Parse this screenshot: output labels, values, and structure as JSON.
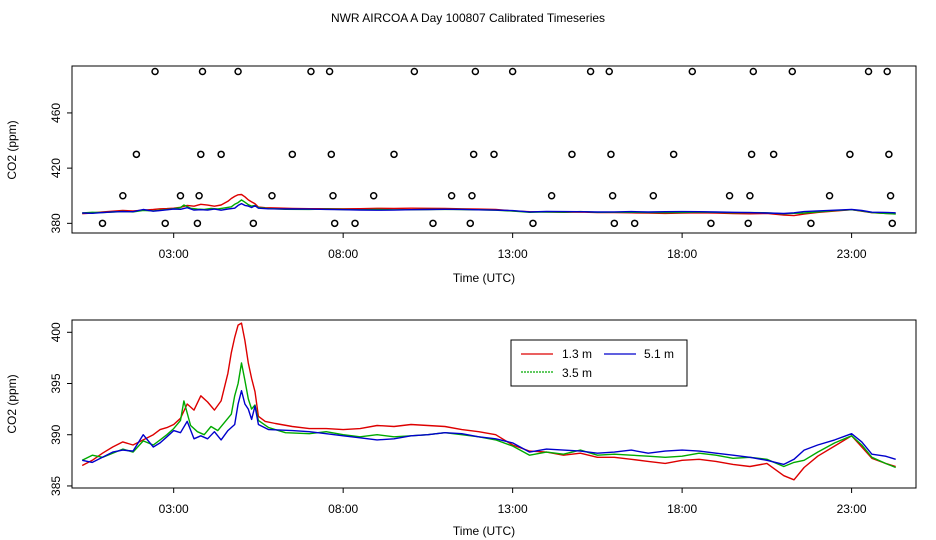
{
  "chart_data": {
    "title": "NWR AIRCOA A  Day 100807  Calibrated Timeseries",
    "panels": [
      {
        "type": "scatter+line",
        "xlabel": "Time (UTC)",
        "ylabel": "CO2 (ppm)",
        "xlim": [
          0,
          24.9
        ],
        "ylim": [
          373,
          494
        ],
        "xticks": [
          3,
          8,
          13,
          18,
          23
        ],
        "xtick_labels": [
          "03:00",
          "08:00",
          "13:00",
          "18:00",
          "23:00"
        ],
        "yticks": [
          380,
          420,
          460
        ],
        "ytick_labels": [
          "380",
          "420",
          "460"
        ],
        "circles": [
          {
            "x": 0.9,
            "y": 380
          },
          {
            "x": 1.5,
            "y": 400
          },
          {
            "x": 1.9,
            "y": 430
          },
          {
            "x": 2.45,
            "y": 490
          },
          {
            "x": 2.75,
            "y": 380
          },
          {
            "x": 3.2,
            "y": 400
          },
          {
            "x": 3.7,
            "y": 380
          },
          {
            "x": 3.75,
            "y": 400
          },
          {
            "x": 3.8,
            "y": 430
          },
          {
            "x": 3.85,
            "y": 490
          },
          {
            "x": 4.4,
            "y": 430
          },
          {
            "x": 4.9,
            "y": 490
          },
          {
            "x": 5.35,
            "y": 380
          },
          {
            "x": 5.9,
            "y": 400
          },
          {
            "x": 6.5,
            "y": 430
          },
          {
            "x": 7.05,
            "y": 490
          },
          {
            "x": 7.6,
            "y": 490
          },
          {
            "x": 7.65,
            "y": 430
          },
          {
            "x": 7.7,
            "y": 400
          },
          {
            "x": 7.75,
            "y": 380
          },
          {
            "x": 8.35,
            "y": 380
          },
          {
            "x": 8.9,
            "y": 400
          },
          {
            "x": 9.5,
            "y": 430
          },
          {
            "x": 10.1,
            "y": 490
          },
          {
            "x": 10.65,
            "y": 380
          },
          {
            "x": 11.2,
            "y": 400
          },
          {
            "x": 11.75,
            "y": 380
          },
          {
            "x": 11.8,
            "y": 400
          },
          {
            "x": 11.85,
            "y": 430
          },
          {
            "x": 11.9,
            "y": 490
          },
          {
            "x": 12.45,
            "y": 430
          },
          {
            "x": 13.0,
            "y": 490
          },
          {
            "x": 13.6,
            "y": 380
          },
          {
            "x": 14.15,
            "y": 400
          },
          {
            "x": 14.75,
            "y": 430
          },
          {
            "x": 15.3,
            "y": 490
          },
          {
            "x": 15.85,
            "y": 490
          },
          {
            "x": 15.9,
            "y": 430
          },
          {
            "x": 15.95,
            "y": 400
          },
          {
            "x": 16.0,
            "y": 380
          },
          {
            "x": 16.6,
            "y": 380
          },
          {
            "x": 17.15,
            "y": 400
          },
          {
            "x": 17.75,
            "y": 430
          },
          {
            "x": 18.3,
            "y": 490
          },
          {
            "x": 18.85,
            "y": 380
          },
          {
            "x": 19.4,
            "y": 400
          },
          {
            "x": 19.95,
            "y": 380
          },
          {
            "x": 20.0,
            "y": 400
          },
          {
            "x": 20.05,
            "y": 430
          },
          {
            "x": 20.1,
            "y": 490
          },
          {
            "x": 20.7,
            "y": 430
          },
          {
            "x": 21.25,
            "y": 490
          },
          {
            "x": 21.8,
            "y": 380
          },
          {
            "x": 22.35,
            "y": 400
          },
          {
            "x": 22.95,
            "y": 430
          },
          {
            "x": 23.5,
            "y": 490
          },
          {
            "x": 24.05,
            "y": 490
          },
          {
            "x": 24.1,
            "y": 430
          },
          {
            "x": 24.15,
            "y": 400
          },
          {
            "x": 24.2,
            "y": 380
          }
        ]
      },
      {
        "type": "line",
        "xlabel": "Time (UTC)",
        "ylabel": "CO2 (ppm)",
        "xlim": [
          0,
          24.9
        ],
        "ylim": [
          384.8,
          401.2
        ],
        "xticks": [
          3,
          8,
          13,
          18,
          23
        ],
        "xtick_labels": [
          "03:00",
          "08:00",
          "13:00",
          "18:00",
          "23:00"
        ],
        "yticks": [
          385,
          390,
          395,
          400
        ],
        "ytick_labels": [
          "385",
          "390",
          "395",
          "400"
        ],
        "legend": {
          "position": "top-center",
          "entries": [
            {
              "label": "1.3 m",
              "color": "#dd0000"
            },
            {
              "label": "5.1 m",
              "color": "#0000cc"
            },
            {
              "label": "3.5 m",
              "color": "#00aa00"
            }
          ]
        }
      }
    ],
    "series": [
      {
        "name": "1.3 m",
        "color": "#dd0000",
        "points": [
          [
            0.3,
            387.0
          ],
          [
            0.6,
            387.5
          ],
          [
            0.9,
            388.2
          ],
          [
            1.2,
            388.8
          ],
          [
            1.5,
            389.3
          ],
          [
            1.8,
            389.0
          ],
          [
            2.1,
            389.5
          ],
          [
            2.4,
            390.0
          ],
          [
            2.6,
            390.5
          ],
          [
            2.8,
            390.7
          ],
          [
            3.0,
            391.0
          ],
          [
            3.2,
            391.6
          ],
          [
            3.4,
            393.0
          ],
          [
            3.6,
            392.4
          ],
          [
            3.8,
            393.8
          ],
          [
            4.0,
            393.2
          ],
          [
            4.2,
            392.4
          ],
          [
            4.4,
            393.3
          ],
          [
            4.6,
            396.0
          ],
          [
            4.7,
            398.0
          ],
          [
            4.8,
            399.5
          ],
          [
            4.9,
            400.7
          ],
          [
            5.0,
            400.9
          ],
          [
            5.1,
            399.2
          ],
          [
            5.2,
            397.0
          ],
          [
            5.3,
            395.5
          ],
          [
            5.4,
            394.2
          ],
          [
            5.5,
            391.8
          ],
          [
            5.7,
            391.3
          ],
          [
            6.0,
            391.1
          ],
          [
            6.5,
            390.8
          ],
          [
            7.0,
            390.6
          ],
          [
            7.5,
            390.6
          ],
          [
            8.0,
            390.5
          ],
          [
            8.5,
            390.6
          ],
          [
            9.0,
            390.9
          ],
          [
            9.5,
            390.8
          ],
          [
            10.0,
            391.0
          ],
          [
            10.5,
            390.9
          ],
          [
            11.0,
            390.8
          ],
          [
            11.5,
            390.5
          ],
          [
            12.0,
            390.3
          ],
          [
            12.5,
            390.0
          ],
          [
            13.0,
            389.0
          ],
          [
            13.5,
            388.4
          ],
          [
            14.0,
            388.3
          ],
          [
            14.5,
            388.0
          ],
          [
            15.0,
            388.2
          ],
          [
            15.5,
            387.8
          ],
          [
            16.0,
            387.8
          ],
          [
            16.5,
            387.6
          ],
          [
            17.0,
            387.4
          ],
          [
            17.5,
            387.2
          ],
          [
            18.0,
            387.5
          ],
          [
            18.5,
            387.6
          ],
          [
            19.0,
            387.4
          ],
          [
            19.5,
            387.1
          ],
          [
            20.0,
            386.9
          ],
          [
            20.5,
            387.2
          ],
          [
            21.0,
            386.0
          ],
          [
            21.3,
            385.6
          ],
          [
            21.6,
            386.8
          ],
          [
            22.0,
            387.9
          ],
          [
            22.5,
            388.9
          ],
          [
            23.0,
            389.9
          ],
          [
            23.3,
            388.8
          ],
          [
            23.6,
            387.7
          ],
          [
            24.0,
            387.2
          ],
          [
            24.3,
            386.9
          ]
        ]
      },
      {
        "name": "3.5 m",
        "color": "#00aa00",
        "points": [
          [
            0.3,
            387.5
          ],
          [
            0.6,
            388.0
          ],
          [
            0.9,
            387.8
          ],
          [
            1.2,
            388.2
          ],
          [
            1.5,
            388.6
          ],
          [
            1.8,
            388.3
          ],
          [
            2.1,
            389.4
          ],
          [
            2.4,
            389.0
          ],
          [
            2.6,
            389.5
          ],
          [
            2.8,
            390.0
          ],
          [
            3.0,
            390.6
          ],
          [
            3.2,
            391.4
          ],
          [
            3.3,
            393.3
          ],
          [
            3.5,
            390.9
          ],
          [
            3.7,
            390.3
          ],
          [
            3.9,
            390.0
          ],
          [
            4.1,
            390.8
          ],
          [
            4.3,
            390.4
          ],
          [
            4.5,
            391.2
          ],
          [
            4.7,
            392.0
          ],
          [
            4.8,
            393.8
          ],
          [
            4.9,
            395.0
          ],
          [
            5.0,
            397.0
          ],
          [
            5.1,
            395.3
          ],
          [
            5.2,
            393.5
          ],
          [
            5.3,
            392.5
          ],
          [
            5.4,
            392.9
          ],
          [
            5.5,
            391.4
          ],
          [
            5.8,
            390.7
          ],
          [
            6.3,
            390.2
          ],
          [
            7.0,
            390.1
          ],
          [
            7.5,
            390.3
          ],
          [
            8.0,
            390.0
          ],
          [
            8.5,
            389.8
          ],
          [
            9.0,
            390.0
          ],
          [
            9.5,
            389.8
          ],
          [
            10.0,
            389.9
          ],
          [
            10.5,
            390.0
          ],
          [
            11.0,
            390.2
          ],
          [
            11.5,
            390.0
          ],
          [
            12.0,
            389.8
          ],
          [
            12.5,
            389.5
          ],
          [
            13.0,
            388.9
          ],
          [
            13.5,
            388.0
          ],
          [
            14.0,
            388.3
          ],
          [
            14.5,
            388.1
          ],
          [
            15.0,
            388.5
          ],
          [
            15.5,
            388.0
          ],
          [
            16.0,
            388.1
          ],
          [
            16.5,
            388.0
          ],
          [
            17.0,
            387.9
          ],
          [
            17.5,
            387.8
          ],
          [
            18.0,
            387.9
          ],
          [
            18.5,
            388.2
          ],
          [
            19.0,
            388.0
          ],
          [
            19.5,
            387.7
          ],
          [
            20.0,
            387.8
          ],
          [
            20.5,
            387.6
          ],
          [
            21.0,
            386.9
          ],
          [
            21.3,
            387.3
          ],
          [
            21.6,
            387.5
          ],
          [
            22.0,
            388.3
          ],
          [
            22.5,
            389.2
          ],
          [
            23.0,
            389.9
          ],
          [
            23.3,
            389.0
          ],
          [
            23.6,
            387.8
          ],
          [
            24.0,
            387.2
          ],
          [
            24.3,
            386.8
          ]
        ]
      },
      {
        "name": "5.1 m",
        "color": "#0000cc",
        "points": [
          [
            0.3,
            387.5
          ],
          [
            0.6,
            387.3
          ],
          [
            0.9,
            387.8
          ],
          [
            1.2,
            388.3
          ],
          [
            1.5,
            388.5
          ],
          [
            1.8,
            388.4
          ],
          [
            2.1,
            390.0
          ],
          [
            2.4,
            388.8
          ],
          [
            2.6,
            389.2
          ],
          [
            2.8,
            389.8
          ],
          [
            3.0,
            390.4
          ],
          [
            3.2,
            390.2
          ],
          [
            3.4,
            391.3
          ],
          [
            3.6,
            389.6
          ],
          [
            3.8,
            389.9
          ],
          [
            4.0,
            389.6
          ],
          [
            4.2,
            390.3
          ],
          [
            4.4,
            389.5
          ],
          [
            4.6,
            390.4
          ],
          [
            4.8,
            391.0
          ],
          [
            4.9,
            393.0
          ],
          [
            5.0,
            394.3
          ],
          [
            5.1,
            393.0
          ],
          [
            5.2,
            392.5
          ],
          [
            5.3,
            391.5
          ],
          [
            5.4,
            392.8
          ],
          [
            5.5,
            391.0
          ],
          [
            5.8,
            390.5
          ],
          [
            6.5,
            390.4
          ],
          [
            7.0,
            390.3
          ],
          [
            7.5,
            390.1
          ],
          [
            8.0,
            389.9
          ],
          [
            8.5,
            389.7
          ],
          [
            9.0,
            389.5
          ],
          [
            9.5,
            389.6
          ],
          [
            10.0,
            389.9
          ],
          [
            10.5,
            390.0
          ],
          [
            11.0,
            390.2
          ],
          [
            11.5,
            390.1
          ],
          [
            12.0,
            389.8
          ],
          [
            12.5,
            389.6
          ],
          [
            13.0,
            389.2
          ],
          [
            13.5,
            388.3
          ],
          [
            14.0,
            388.6
          ],
          [
            14.5,
            388.5
          ],
          [
            15.0,
            388.4
          ],
          [
            15.5,
            388.2
          ],
          [
            16.0,
            388.3
          ],
          [
            16.5,
            388.5
          ],
          [
            17.0,
            388.2
          ],
          [
            17.5,
            388.4
          ],
          [
            18.0,
            388.5
          ],
          [
            18.5,
            388.4
          ],
          [
            19.0,
            388.2
          ],
          [
            19.5,
            388.0
          ],
          [
            20.0,
            387.8
          ],
          [
            20.5,
            387.5
          ],
          [
            21.0,
            387.1
          ],
          [
            21.3,
            387.6
          ],
          [
            21.6,
            388.5
          ],
          [
            22.0,
            389.0
          ],
          [
            22.5,
            389.5
          ],
          [
            23.0,
            390.1
          ],
          [
            23.3,
            389.3
          ],
          [
            23.6,
            388.1
          ],
          [
            24.0,
            387.9
          ],
          [
            24.3,
            387.6
          ]
        ]
      }
    ]
  }
}
